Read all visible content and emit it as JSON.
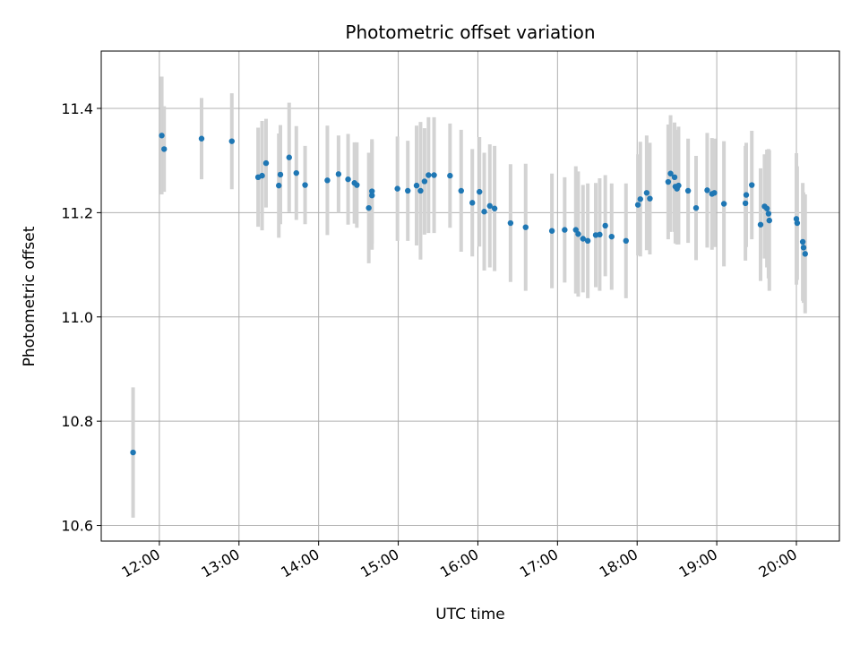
{
  "chart_data": {
    "type": "scatter",
    "title": "Photometric offset variation",
    "xlabel": "UTC time",
    "ylabel": "Photometric offset",
    "grid": true,
    "xlim": [
      11.27,
      20.54
    ],
    "ylim": [
      10.57,
      11.51
    ],
    "x_ticks": [
      12,
      13,
      14,
      15,
      16,
      17,
      18,
      19,
      20
    ],
    "x_tick_labels": [
      "12:00",
      "13:00",
      "14:00",
      "15:00",
      "16:00",
      "17:00",
      "18:00",
      "19:00",
      "20:00"
    ],
    "y_ticks": [
      10.6,
      10.8,
      11.0,
      11.2,
      11.4
    ],
    "y_tick_labels": [
      "10.6",
      "10.8",
      "11.0",
      "11.2",
      "11.4"
    ],
    "marker_color": "#1f77b4",
    "errorbar_color": "#d3d3d3",
    "series": [
      {
        "name": "offset",
        "x": [
          11.67,
          12.03,
          12.06,
          12.53,
          12.91,
          13.24,
          13.29,
          13.34,
          13.5,
          13.52,
          13.63,
          13.72,
          13.83,
          14.11,
          14.25,
          14.37,
          14.45,
          14.48,
          14.63,
          14.67,
          14.67,
          14.99,
          15.12,
          15.23,
          15.28,
          15.33,
          15.38,
          15.45,
          15.65,
          15.79,
          15.93,
          16.02,
          16.08,
          16.15,
          16.21,
          16.41,
          16.6,
          16.93,
          17.09,
          17.23,
          17.26,
          17.32,
          17.38,
          17.48,
          17.53,
          17.6,
          17.68,
          17.86,
          18.01,
          18.04,
          18.12,
          18.16,
          18.39,
          18.42,
          18.47,
          18.48,
          18.5,
          18.52,
          18.64,
          18.74,
          18.88,
          18.94,
          18.97,
          19.09,
          19.36,
          19.37,
          19.44,
          19.55,
          19.6,
          19.63,
          19.65,
          19.66,
          20.0,
          20.01,
          20.08,
          20.09,
          20.11
        ],
        "y": [
          10.74,
          11.348,
          11.322,
          11.342,
          11.337,
          11.268,
          11.271,
          11.295,
          11.252,
          11.273,
          11.306,
          11.276,
          11.253,
          11.262,
          11.274,
          11.264,
          11.257,
          11.253,
          11.209,
          11.233,
          11.241,
          11.246,
          11.242,
          11.252,
          11.242,
          11.26,
          11.272,
          11.272,
          11.271,
          11.242,
          11.219,
          11.24,
          11.202,
          11.213,
          11.208,
          11.18,
          11.172,
          11.165,
          11.167,
          11.167,
          11.159,
          11.15,
          11.146,
          11.157,
          11.158,
          11.175,
          11.154,
          11.146,
          11.215,
          11.226,
          11.238,
          11.227,
          11.259,
          11.275,
          11.268,
          11.25,
          11.246,
          11.252,
          11.242,
          11.209,
          11.243,
          11.236,
          11.238,
          11.217,
          11.218,
          11.234,
          11.253,
          11.177,
          11.212,
          11.208,
          11.198,
          11.185,
          11.188,
          11.18,
          11.144,
          11.133,
          11.121
        ],
        "yerr": [
          0.125,
          0.113,
          0.082,
          0.078,
          0.092,
          0.095,
          0.105,
          0.085,
          0.1,
          0.095,
          0.105,
          0.09,
          0.075,
          0.105,
          0.074,
          0.087,
          0.078,
          0.082,
          0.106,
          0.104,
          0.1,
          0.1,
          0.096,
          0.115,
          0.132,
          0.102,
          0.111,
          0.111,
          0.1,
          0.117,
          0.103,
          0.105,
          0.113,
          0.118,
          0.12,
          0.113,
          0.122,
          0.11,
          0.101,
          0.122,
          0.12,
          0.103,
          0.11,
          0.1,
          0.108,
          0.097,
          0.102,
          0.11,
          0.097,
          0.11,
          0.11,
          0.107,
          0.11,
          0.112,
          0.105,
          0.109,
          0.107,
          0.113,
          0.1,
          0.1,
          0.11,
          0.107,
          0.104,
          0.12,
          0.11,
          0.1,
          0.104,
          0.108,
          0.1,
          0.113,
          0.124,
          0.135,
          0.126,
          0.109,
          0.113,
          0.106,
          0.114
        ]
      }
    ]
  }
}
